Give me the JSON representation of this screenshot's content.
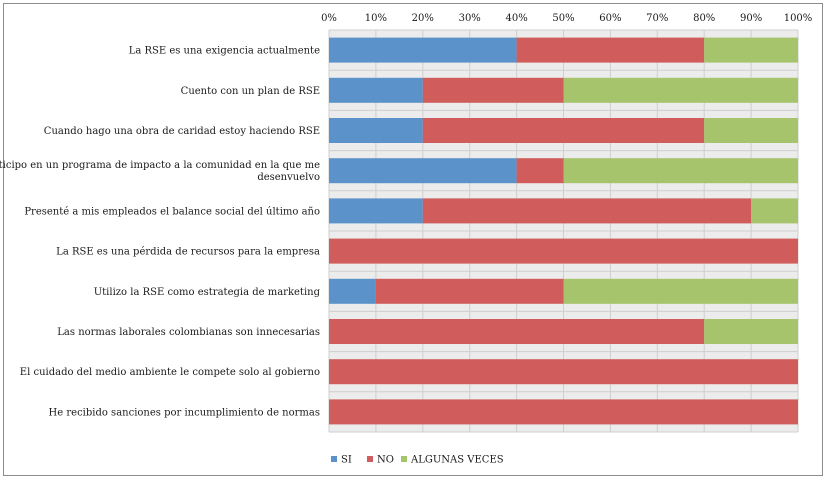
{
  "chart_data": {
    "type": "bar",
    "orientation": "horizontal",
    "stacked": "percent",
    "categories": [
      "La RSE es una exigencia actualmente",
      "Cuento con un plan de RSE",
      "Cuando hago una obra de caridad estoy haciendo RSE",
      "Participo en un programa de impacto a la comunidad en la que me desenvuelvo",
      "Presenté a mis empleados el balance social del último año",
      "La RSE es una pérdida de recursos para la empresa",
      "Utilizo la RSE como estrategia de marketing",
      "Las normas laborales colombianas son innecesarias",
      "El cuidado del medio ambiente le compete solo al gobierno",
      "He recibido sanciones por incumplimiento de normas"
    ],
    "category_lines": [
      [
        "La RSE es una exigencia actualmente"
      ],
      [
        "Cuento con un plan de RSE"
      ],
      [
        "Cuando hago una obra de caridad estoy haciendo RSE"
      ],
      [
        "Participo en un programa de impacto a la comunidad en la que me",
        "desenvuelvo"
      ],
      [
        "Presenté a mis empleados el balance social del último año"
      ],
      [
        "La RSE es una pérdida de recursos para la empresa"
      ],
      [
        "Utilizo la RSE como estrategia de marketing"
      ],
      [
        "Las normas laborales colombianas son innecesarias"
      ],
      [
        "El cuidado del medio ambiente le compete solo al gobierno"
      ],
      [
        "He recibido sanciones por incumplimiento de normas"
      ]
    ],
    "series": [
      {
        "name": "SI",
        "color": "#5b92c9",
        "values": [
          40,
          20,
          20,
          40,
          20,
          0,
          10,
          0,
          0,
          0
        ]
      },
      {
        "name": "NO",
        "color": "#d05d5b",
        "values": [
          40,
          30,
          60,
          10,
          70,
          100,
          40,
          80,
          100,
          100
        ]
      },
      {
        "name": "ALGUNAS VECES",
        "color": "#a5c46b",
        "values": [
          20,
          50,
          20,
          50,
          10,
          0,
          50,
          20,
          0,
          0
        ]
      }
    ],
    "xticks": [
      "0%",
      "10%",
      "20%",
      "30%",
      "40%",
      "50%",
      "60%",
      "70%",
      "80%",
      "90%",
      "100%"
    ],
    "xlim": [
      0,
      100
    ],
    "title": "",
    "xlabel": "",
    "ylabel": "",
    "grid": true,
    "legend_position": "bottom",
    "plot_background": "#ececec"
  }
}
